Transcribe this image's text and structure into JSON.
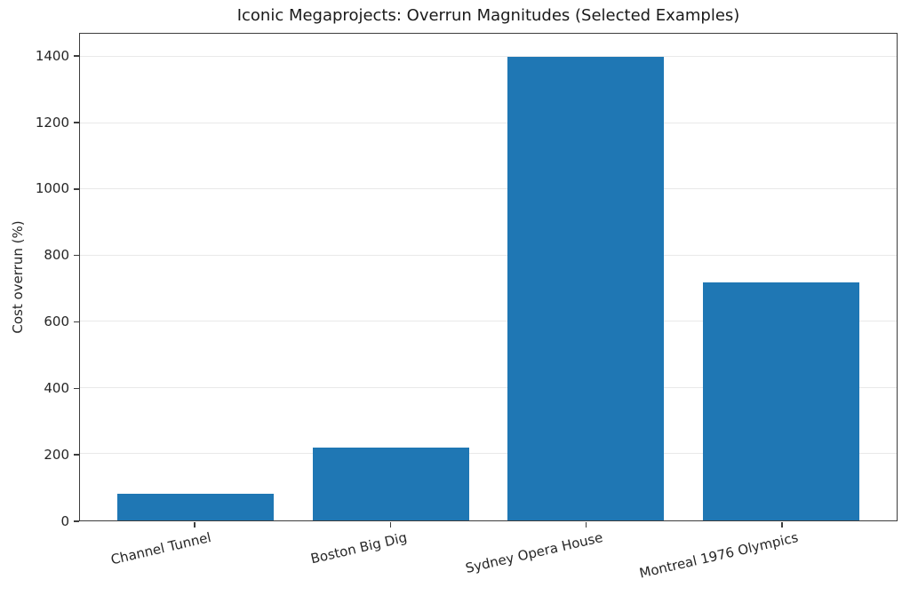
{
  "chart_data": {
    "type": "bar",
    "title": "Iconic Megaprojects: Overrun Magnitudes (Selected Examples)",
    "categories": [
      "Channel Tunnel",
      "Boston Big Dig",
      "Sydney Opera House",
      "Montreal 1976 Olympics"
    ],
    "values": [
      80,
      220,
      1400,
      720
    ],
    "xlabel": "",
    "ylabel": "Cost overrun (%)",
    "ylim": [
      0,
      1470
    ],
    "yticks": [
      0,
      200,
      400,
      600,
      800,
      1000,
      1200,
      1400
    ],
    "bar_color": "#1f77b4",
    "grid": true,
    "grid_color": "#e9e9e9",
    "axis_color": "#3d3d3d",
    "legend": null,
    "x_tick_rotation_deg": 13
  }
}
